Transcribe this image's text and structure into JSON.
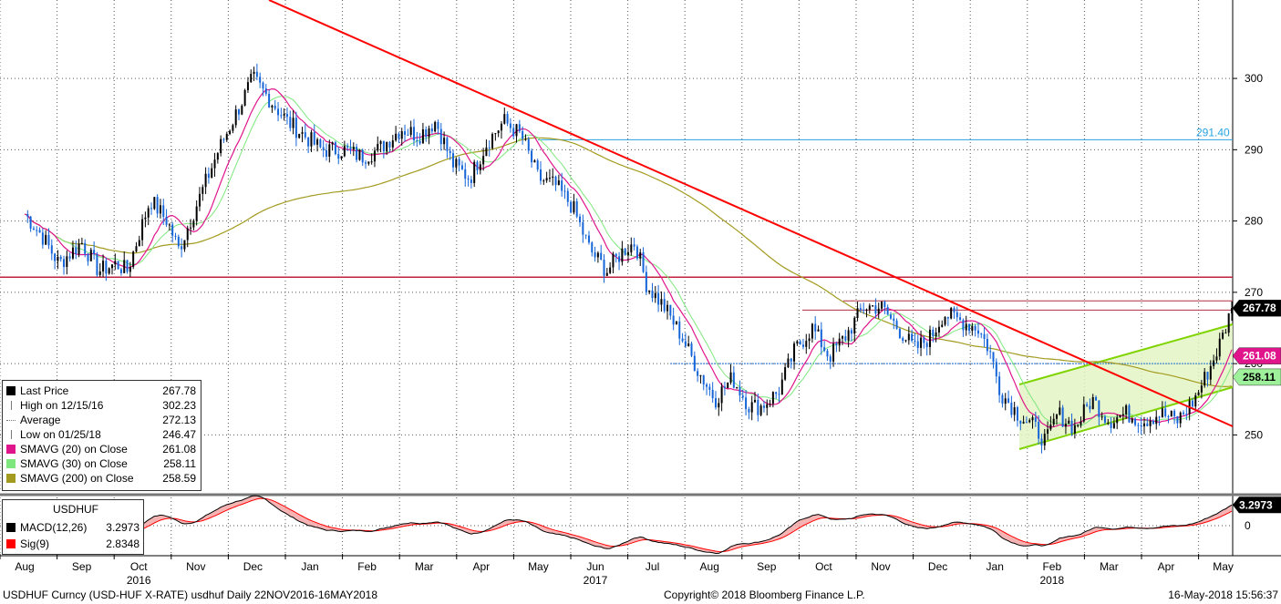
{
  "chart_data": [
    {
      "type": "candlestick",
      "symbol": "USDHUF",
      "ylim": [
        242,
        311
      ],
      "yticks": [
        250,
        260,
        270,
        280,
        290,
        300
      ],
      "x_months": [
        "Aug",
        "Sep",
        "Oct",
        "Nov",
        "Dec",
        "Jan",
        "Feb",
        "Mar",
        "Apr",
        "May",
        "Jun",
        "Jul",
        "Aug",
        "Sep",
        "Oct",
        "Nov",
        "Dec",
        "Jan",
        "Feb",
        "Mar",
        "Apr",
        "May"
      ],
      "x_years": [
        {
          "label": "2016",
          "at_month_index": 2
        },
        {
          "label": "2017",
          "at_month_index": 10
        },
        {
          "label": "2018",
          "at_month_index": 18
        }
      ],
      "price_path": [
        [
          0,
          281
        ],
        [
          0.3,
          278
        ],
        [
          0.6,
          274
        ],
        [
          1.0,
          277
        ],
        [
          1.3,
          273
        ],
        [
          1.6,
          274
        ],
        [
          1.8,
          273
        ],
        [
          2.0,
          278
        ],
        [
          2.2,
          283
        ],
        [
          2.5,
          280
        ],
        [
          2.7,
          276
        ],
        [
          2.9,
          280
        ],
        [
          3.1,
          284
        ],
        [
          3.4,
          290
        ],
        [
          3.7,
          295
        ],
        [
          4.0,
          300
        ],
        [
          4.3,
          297
        ],
        [
          4.6,
          294
        ],
        [
          4.9,
          292
        ],
        [
          5.2,
          290
        ],
        [
          5.6,
          290
        ],
        [
          5.9,
          289
        ],
        [
          6.2,
          290
        ],
        [
          6.6,
          293
        ],
        [
          6.9,
          292
        ],
        [
          7.2,
          294
        ],
        [
          7.5,
          288
        ],
        [
          7.8,
          286
        ],
        [
          8.1,
          291
        ],
        [
          8.4,
          294
        ],
        [
          8.7,
          292
        ],
        [
          9.0,
          286
        ],
        [
          9.3,
          285
        ],
        [
          9.6,
          282
        ],
        [
          9.9,
          276
        ],
        [
          10.2,
          273
        ],
        [
          10.5,
          276
        ],
        [
          10.7,
          277
        ],
        [
          10.9,
          271
        ],
        [
          11.2,
          268
        ],
        [
          11.5,
          264
        ],
        [
          11.8,
          259
        ],
        [
          12.1,
          255
        ],
        [
          12.4,
          258
        ],
        [
          12.7,
          254
        ],
        [
          12.9,
          254
        ],
        [
          13.2,
          256
        ],
        [
          13.5,
          262
        ],
        [
          13.8,
          265
        ],
        [
          14.1,
          261
        ],
        [
          14.4,
          264
        ],
        [
          14.7,
          268
        ],
        [
          15.0,
          268
        ],
        [
          15.3,
          265
        ],
        [
          15.6,
          262
        ],
        [
          15.9,
          264
        ],
        [
          16.1,
          267
        ],
        [
          16.4,
          266
        ],
        [
          16.7,
          265
        ],
        [
          16.9,
          262
        ],
        [
          17.1,
          256
        ],
        [
          17.4,
          253
        ],
        [
          17.7,
          251
        ],
        [
          17.9,
          249
        ],
        [
          18.1,
          253
        ],
        [
          18.4,
          251
        ],
        [
          18.7,
          255
        ],
        [
          19.0,
          252
        ],
        [
          19.3,
          253
        ],
        [
          19.6,
          252
        ],
        [
          19.9,
          253
        ],
        [
          20.2,
          252
        ],
        [
          20.5,
          255
        ],
        [
          20.8,
          260
        ],
        [
          21.0,
          264
        ],
        [
          21.15,
          267.78
        ]
      ],
      "annotations": {
        "h_line_blue": 291.4,
        "h_line_red": 272.13,
        "resistance_lines": [
          268.8,
          267.5
        ],
        "support_line_blue": 260.0,
        "last_price": 267.78,
        "sma20": 261.08,
        "sma30": 258.11
      },
      "label_291": "291.40",
      "label_last": "267.78",
      "label_sma20": "261.08",
      "label_sma30": "258.11",
      "colors": {
        "sma20": "#e0158c",
        "sma30": "#7ee87e",
        "sma200": "#a39a1f",
        "trend": "#ff0000",
        "channel": "#7fd400",
        "price_up": "#000000",
        "price_down": "#1565d8",
        "hline_blue": "#27a3e0"
      }
    },
    {
      "type": "macd",
      "ylim": [
        -4.5,
        4.5
      ],
      "yticks": [
        0
      ],
      "macd_label": "3.2973",
      "macd_value": 3.2973,
      "sig_value": 2.8348
    }
  ],
  "legend": {
    "rows": [
      {
        "label": "Last Price",
        "value": "267.78",
        "color": "#000000"
      },
      {
        "label": "High on 12/15/16",
        "value": "302.23",
        "color": "#777777"
      },
      {
        "label": "Average",
        "value": "272.13",
        "color": "#777777"
      },
      {
        "label": "Low on 01/25/18",
        "value": "246.47",
        "color": "#777777"
      },
      {
        "label": "SMAVG (20) on Close",
        "value": "261.08",
        "color": "#e0158c"
      },
      {
        "label": "SMAVG (30) on Close",
        "value": "258.11",
        "color": "#7ee87e"
      },
      {
        "label": "SMAVG (200) on Close",
        "value": "258.59",
        "color": "#a39a1f"
      }
    ]
  },
  "macd_legend": {
    "title": "USDHUF",
    "rows": [
      {
        "label": "MACD(12,26)",
        "value": "3.2973",
        "color": "#000000"
      },
      {
        "label": "Sig(9)",
        "value": "2.8348",
        "color": "#ff0000"
      }
    ]
  },
  "footer": {
    "left": "USDHUF Curncy (USD-HUF X-RATE) usdhuf  Daily 22NOV2016-16MAY2018",
    "center": "Copyright© 2018 Bloomberg Finance L.P.",
    "right": "16-May-2018 15:56:37"
  }
}
